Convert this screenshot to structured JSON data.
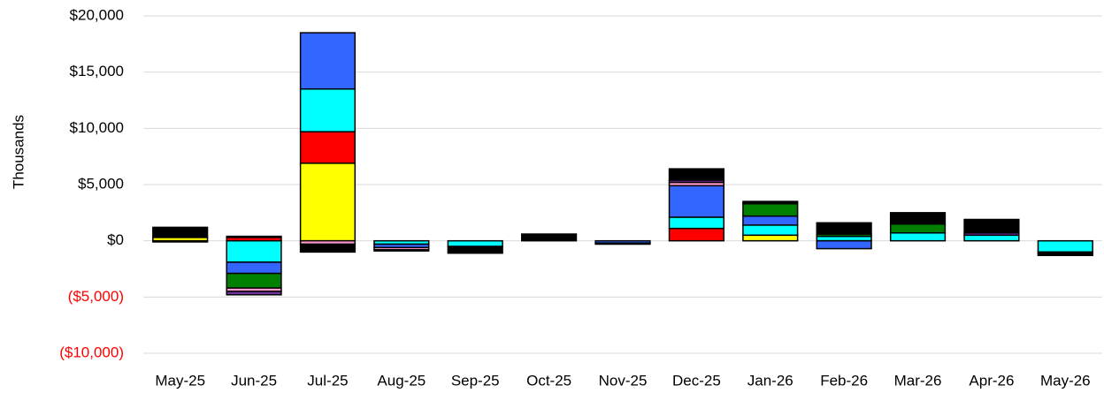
{
  "chart_data": {
    "type": "stacked_bar",
    "y_label": "Thousands",
    "categories": [
      "May-25",
      "Jun-25",
      "Jul-25",
      "Aug-25",
      "Sep-25",
      "Oct-25",
      "Nov-25",
      "Dec-25",
      "Jan-26",
      "Feb-26",
      "Mar-26",
      "Apr-26",
      "May-26"
    ],
    "series": [
      {
        "color": "#ffff00",
        "values": [
          300,
          0,
          6900,
          0,
          0,
          0,
          0,
          0,
          500,
          0,
          0,
          0,
          0
        ]
      },
      {
        "color": "#ff0000",
        "values": [
          0,
          300,
          2800,
          0,
          0,
          0,
          0,
          1100,
          0,
          0,
          0,
          0,
          0
        ]
      },
      {
        "color": "#00ffff",
        "values": [
          0,
          -1900,
          3800,
          -300,
          -500,
          0,
          0,
          1000,
          900,
          400,
          700,
          500,
          -1000
        ]
      },
      {
        "color": "#3366ff",
        "values": [
          -100,
          -1000,
          5000,
          -300,
          0,
          0,
          -200,
          2800,
          800,
          -700,
          0,
          0,
          -100
        ]
      },
      {
        "color": "#008000",
        "values": [
          0,
          -1300,
          0,
          0,
          0,
          0,
          0,
          0,
          1100,
          200,
          800,
          0,
          0
        ]
      },
      {
        "color": "#ff99cc",
        "values": [
          0,
          -300,
          -300,
          -200,
          0,
          0,
          0,
          300,
          0,
          0,
          0,
          0,
          0
        ]
      },
      {
        "color": "#7030a0",
        "values": [
          0,
          -300,
          0,
          0,
          0,
          0,
          0,
          200,
          0,
          0,
          0,
          200,
          0
        ]
      },
      {
        "color": "#000000",
        "values": [
          900,
          100,
          -700,
          -100,
          -600,
          600,
          -100,
          1000,
          200,
          1000,
          1000,
          1200,
          -200
        ]
      }
    ],
    "ylim": [
      -10000,
      20000
    ],
    "yticks": [
      {
        "value": -10000,
        "label": "($10,000)"
      },
      {
        "value": -5000,
        "label": "($5,000)"
      },
      {
        "value": 0,
        "label": "$0"
      },
      {
        "value": 5000,
        "label": "$5,000"
      },
      {
        "value": 10000,
        "label": "$10,000"
      },
      {
        "value": 15000,
        "label": "$15,000"
      },
      {
        "value": 20000,
        "label": "$20,000"
      }
    ],
    "negative_label_color": "#ff0000",
    "grid": true
  }
}
